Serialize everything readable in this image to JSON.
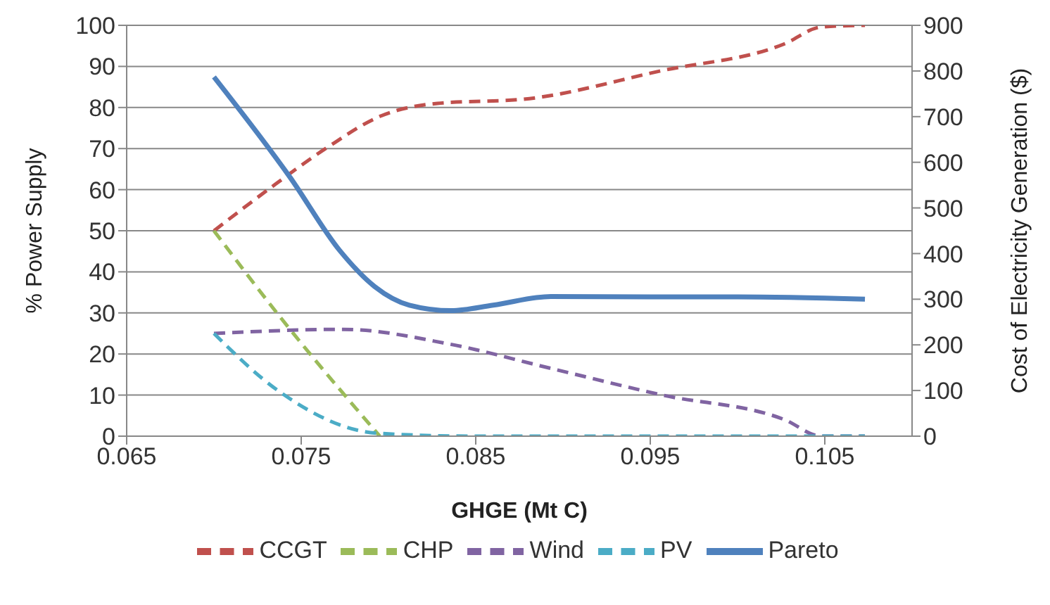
{
  "chart_data": {
    "type": "line",
    "xlabel": "GHGE (Mt C)",
    "ylabel": "% Power Supply",
    "y2label": "Cost of Electricity Generation ($)",
    "xlim": [
      0.065,
      0.11
    ],
    "xticks": [
      0.065,
      0.075,
      0.085,
      0.095,
      0.105
    ],
    "ylim": [
      0,
      100
    ],
    "yticks": [
      0,
      10,
      20,
      30,
      40,
      50,
      60,
      70,
      80,
      90,
      100
    ],
    "y2lim": [
      0,
      900
    ],
    "y2ticks": [
      0,
      100,
      200,
      300,
      400,
      500,
      600,
      700,
      800,
      900
    ],
    "grid": "y",
    "legend": "bottom",
    "marker": "none",
    "series": [
      {
        "name": "CCGT",
        "color": "#c0504d",
        "line_style": "dashed",
        "x": [
          0.07,
          0.0731,
          0.0764,
          0.0796,
          0.0828,
          0.0877,
          0.0957,
          0.1027,
          0.1048,
          0.1073
        ],
        "values": [
          50,
          60,
          70,
          78,
          81,
          82,
          89,
          95.5,
          99.6,
          100
        ]
      },
      {
        "name": "CHP",
        "color": "#9bbb59",
        "line_style": "dashed",
        "x": [
          0.07,
          0.0737,
          0.0795
        ],
        "values": [
          50,
          29.5,
          0
        ]
      },
      {
        "name": "Wind",
        "color": "#8064a2",
        "line_style": "dashed",
        "x": [
          0.07,
          0.0774,
          0.0834,
          0.0893,
          0.0957,
          0.1027,
          0.1048,
          0.1073
        ],
        "values": [
          25,
          26,
          22.5,
          16.5,
          10,
          4,
          0,
          0
        ]
      },
      {
        "name": "PV",
        "color": "#4bacc6",
        "line_style": "dashed",
        "x": [
          0.07,
          0.0737,
          0.0794,
          0.085,
          0.095,
          0.1073
        ],
        "values": [
          25,
          11,
          0.7,
          0,
          0,
          0
        ]
      },
      {
        "name": "Pareto",
        "color": "#4f81bd",
        "line_style": "solid",
        "axis": "y2",
        "x": [
          0.07,
          0.0744,
          0.0772,
          0.0792,
          0.0812,
          0.0836,
          0.086,
          0.0893,
          0.095,
          0.1,
          0.1073
        ],
        "values": [
          787,
          565,
          407,
          328,
          287,
          275,
          287,
          306,
          305,
          305,
          300
        ]
      }
    ]
  }
}
